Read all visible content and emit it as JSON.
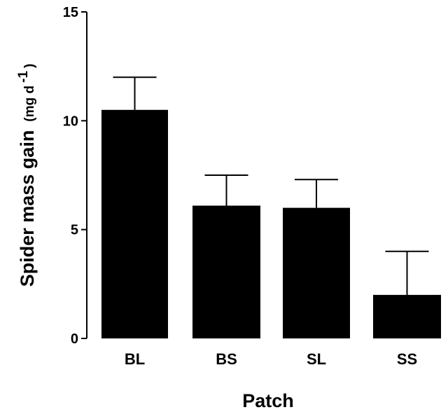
{
  "chart_data": {
    "type": "bar",
    "categories": [
      "BL",
      "BS",
      "SL",
      "SS"
    ],
    "values": [
      10.5,
      6.1,
      6.0,
      2.0
    ],
    "error_upper": [
      12.0,
      7.5,
      7.3,
      4.0
    ],
    "ylabel": "Spider mass gain",
    "ylabel_unit_prefix": "(mg d",
    "ylabel_unit_sup": "-1",
    "ylabel_unit_suffix": ")",
    "xlabel": "Patch",
    "ylim": [
      0,
      15
    ],
    "yticks": [
      0,
      5,
      10,
      15
    ],
    "ytick_labels": [
      "0",
      "5",
      "10",
      "15"
    ],
    "bar_color": "#000000",
    "grid": false
  }
}
